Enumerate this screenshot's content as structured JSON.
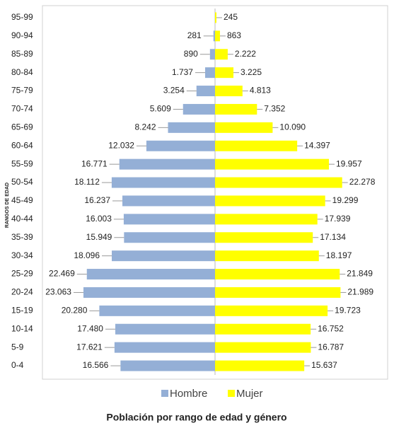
{
  "chart_data": {
    "type": "pyramid",
    "title": "Población por rango de edad y género",
    "y_label": "RANGOS DE EDAD",
    "categories": [
      "0-4",
      "5-9",
      "10-14",
      "15-19",
      "20-24",
      "25-29",
      "30-34",
      "35-39",
      "40-44",
      "45-49",
      "50-54",
      "55-59",
      "60-64",
      "65-69",
      "70-74",
      "75-79",
      "80-84",
      "85-89",
      "90-94",
      "95-99"
    ],
    "xlim": [
      -30000,
      30000
    ],
    "legend": "bottom",
    "series": [
      {
        "name": "Hombre",
        "color": "#94afd6",
        "side": "left",
        "values": [
          16566,
          17621,
          17480,
          20280,
          23063,
          22469,
          18096,
          15949,
          16003,
          16237,
          18112,
          16771,
          12032,
          8242,
          5609,
          3254,
          1737,
          890,
          281,
          null
        ],
        "value_labels": [
          "16.566",
          "17.621",
          "17.480",
          "20.280",
          "23.063",
          "22.469",
          "18.096",
          "15.949",
          "16.003",
          "16.237",
          "18.112",
          "16.771",
          "12.032",
          "8.242",
          "5.609",
          "3.254",
          "1.737",
          "890",
          "281",
          null
        ]
      },
      {
        "name": "Mujer",
        "color": "#ffff00",
        "side": "right",
        "values": [
          15637,
          16787,
          16752,
          19723,
          21989,
          21849,
          18197,
          17134,
          17939,
          19299,
          22278,
          19957,
          14397,
          10090,
          7352,
          4813,
          3225,
          2222,
          863,
          245
        ],
        "value_labels": [
          "15.637",
          "16.787",
          "16.752",
          "19.723",
          "21.989",
          "21.849",
          "18.197",
          "17.134",
          "17.939",
          "19.299",
          "22.278",
          "19.957",
          "14.397",
          "10.090",
          "7.352",
          "4.813",
          "3.225",
          "2.222",
          "863",
          "245"
        ]
      }
    ]
  }
}
